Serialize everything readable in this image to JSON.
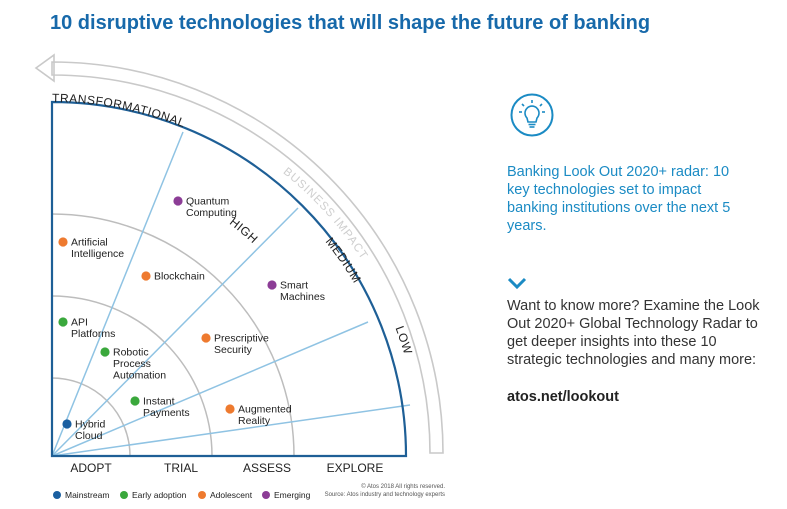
{
  "title": "10 disruptive technologies that will shape the future of banking",
  "axis": {
    "maturity_top": "TRANSFORMATIONAL",
    "business_impact": "BUSINESS IMPACT",
    "high": "HIGH",
    "medium": "MEDIUM",
    "low": "LOW"
  },
  "stages": [
    "ADOPT",
    "TRIAL",
    "ASSESS",
    "EXPLORE"
  ],
  "technologies": [
    {
      "lines": [
        "Quantum",
        "Computing"
      ],
      "category": "Emerging"
    },
    {
      "lines": [
        "Artificial",
        "Intelligence"
      ],
      "category": "Adolescent"
    },
    {
      "lines": [
        "Blockchain"
      ],
      "category": "Adolescent"
    },
    {
      "lines": [
        "Smart",
        "Machines"
      ],
      "category": "Emerging"
    },
    {
      "lines": [
        "API",
        "Platforms"
      ],
      "category": "Early adoption"
    },
    {
      "lines": [
        "Robotic",
        "Process",
        "Automation"
      ],
      "category": "Early adoption"
    },
    {
      "lines": [
        "Prescriptive",
        "Security"
      ],
      "category": "Adolescent"
    },
    {
      "lines": [
        "Instant",
        "Payments"
      ],
      "category": "Early adoption"
    },
    {
      "lines": [
        "Augmented",
        "Reality"
      ],
      "category": "Adolescent"
    },
    {
      "lines": [
        "Hybrid",
        "Cloud"
      ],
      "category": "Mainstream"
    }
  ],
  "legend": [
    {
      "label": "Mainstream",
      "color": "#1a5fa0"
    },
    {
      "label": "Early adoption",
      "color": "#3aa83c"
    },
    {
      "label": "Adolescent",
      "color": "#ee7a2f"
    },
    {
      "label": "Emerging",
      "color": "#8c3d96"
    }
  ],
  "colors": {
    "frame": "#1e5f96",
    "ring": "#bdbdbd",
    "ray": "#8fc3e3",
    "title": "#1769aa",
    "accent": "#1b8bc4"
  },
  "copyright": {
    "line1": "© Atos 2018 All rights reserved.",
    "line2": "Source: Atos industry and technology experts"
  },
  "side": {
    "icon": "lightbulb-icon",
    "text1": "Banking Look Out 2020+ radar: 10 key technologies set to impact banking institutions over the next 5 years.",
    "text2": "Want to know more? Examine the Look Out 2020+ Global Technology Radar to get deeper insights into these 10 strategic technologies and many more:",
    "link": "atos.net/lookout"
  }
}
